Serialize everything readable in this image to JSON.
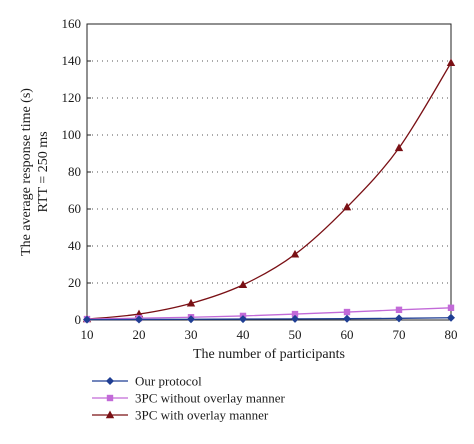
{
  "chart_data": {
    "type": "line",
    "ylabel": "The average response time (s)",
    "ylabel2": "RTT = 250 ms",
    "xlabel": "The number of participants",
    "x": [
      10,
      20,
      30,
      40,
      50,
      60,
      70,
      80
    ],
    "xlim": [
      10,
      80
    ],
    "ylim": [
      0,
      160
    ],
    "x_ticks": [
      "10",
      "20",
      "30",
      "40",
      "50",
      "60",
      "70",
      "80"
    ],
    "y_ticks": [
      "0",
      "20",
      "40",
      "60",
      "80",
      "100",
      "120",
      "140",
      "160"
    ],
    "grid": "horizontal-dotted",
    "legend_position": "bottom",
    "series": [
      {
        "name": "Our protocol",
        "color": "#1f3e93",
        "marker": "diamond",
        "values": [
          0.2,
          0.3,
          0.4,
          0.5,
          0.6,
          0.7,
          0.9,
          1.2
        ]
      },
      {
        "name": "3PC without overlay manner",
        "color": "#c26ad8",
        "marker": "square",
        "values": [
          0.5,
          1.0,
          1.5,
          2.2,
          3.2,
          4.3,
          5.5,
          6.6
        ]
      },
      {
        "name": "3PC with overlay manner",
        "color": "#7a1015",
        "marker": "triangle",
        "values": [
          0.5,
          3.2,
          9.0,
          19.0,
          35.5,
          61.0,
          93.0,
          139.0
        ]
      }
    ]
  }
}
